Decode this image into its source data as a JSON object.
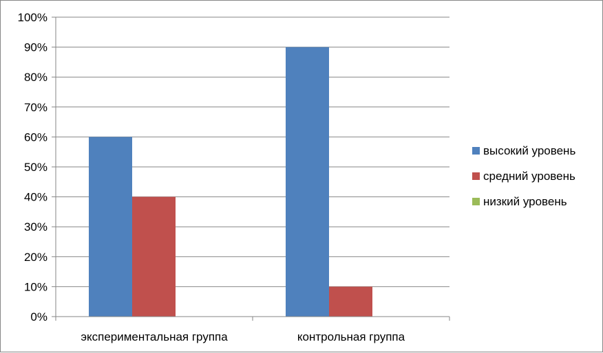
{
  "chart_data": {
    "type": "bar",
    "categories": [
      "экспериментальная группа",
      "контрольная группа"
    ],
    "series": [
      {
        "name": "высокий уровень",
        "values": [
          60,
          90
        ],
        "color": "#4F81BD"
      },
      {
        "name": "средний уровень",
        "values": [
          40,
          10
        ],
        "color": "#C0504D"
      },
      {
        "name": "низкий уровень",
        "values": [
          0,
          0
        ],
        "color": "#9BBB59"
      }
    ],
    "yticks": [
      "0%",
      "10%",
      "20%",
      "30%",
      "40%",
      "50%",
      "60%",
      "70%",
      "80%",
      "90%",
      "100%"
    ],
    "ylim": [
      0,
      100
    ],
    "grid": true,
    "legend": "right",
    "title": "",
    "xlabel": "",
    "ylabel": ""
  }
}
